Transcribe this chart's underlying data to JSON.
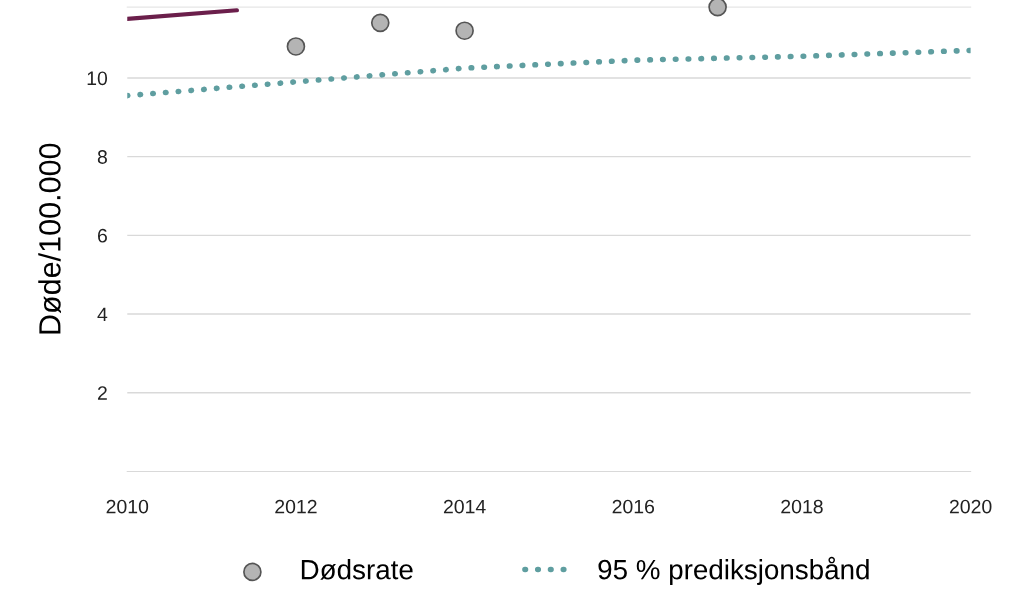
{
  "chart_data": {
    "type": "scatter",
    "ylabel": "Døde/100.000",
    "xlim": [
      2010,
      2020
    ],
    "xticks": [
      2010,
      2012,
      2014,
      2016,
      2018,
      2020
    ],
    "ylim": [
      0,
      11.8
    ],
    "yticks": [
      2,
      4,
      6,
      8,
      10
    ],
    "grid": "y",
    "legend": "bottom",
    "series": [
      {
        "name": "Dødsrate",
        "marker": "circle",
        "color": "#b4b4b4",
        "x": [
          2012,
          2013,
          2014,
          2017
        ],
        "values": [
          10.8,
          11.4,
          11.2,
          11.8
        ]
      },
      {
        "name": "95 % prediksjonsbånd",
        "type": "line",
        "line_style": "dotted",
        "color": "#5f9ea0",
        "x": [
          2010,
          2012,
          2014,
          2016,
          2018,
          2020
        ],
        "values": [
          9.55,
          9.9,
          10.25,
          10.45,
          10.55,
          10.7
        ]
      },
      {
        "type": "line",
        "line_style": "solid",
        "color": "#6b1f4b",
        "x": [
          2010,
          2011.3
        ],
        "values": [
          11.5,
          11.72
        ]
      }
    ]
  }
}
